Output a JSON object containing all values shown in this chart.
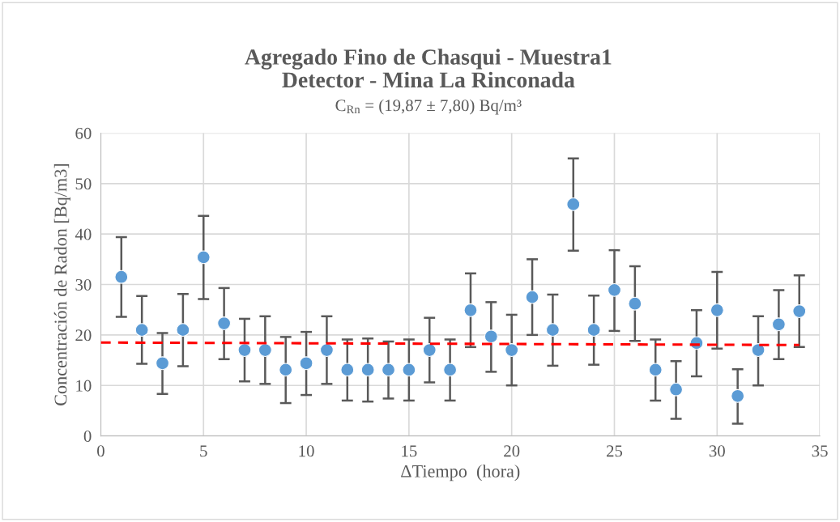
{
  "chart_data": {
    "type": "scatter",
    "title": "Agregado Fino de Chasqui - Muestra1\nDetector - Mina La Rinconada",
    "subtitle": "C$_{Rn}$ = (19,87 ± 7,80) Bq/m³",
    "xlabel": "ΔTiempo  (hora)",
    "ylabel": "Concentración de Radon [Bq/m3]",
    "xlim": [
      0,
      35
    ],
    "xticks": [
      0,
      5,
      10,
      15,
      20,
      25,
      30,
      35
    ],
    "ylim": [
      0,
      60
    ],
    "yticks": [
      0,
      10,
      20,
      30,
      40,
      50,
      60
    ],
    "grid": true,
    "marker": "circle",
    "series": [
      {
        "color": "#5b9bd5",
        "x": [
          1,
          2,
          3,
          4,
          5,
          6,
          7,
          8,
          9,
          10,
          11,
          12,
          13,
          14,
          15,
          16,
          17,
          18,
          19,
          20,
          21,
          22,
          23,
          24,
          25,
          26,
          27,
          28,
          29,
          30,
          31,
          32,
          33,
          34
        ],
        "values": [
          31.5,
          21,
          14.4,
          21,
          35.4,
          22.3,
          17,
          17,
          13.1,
          14.4,
          17,
          13.1,
          13.1,
          13.1,
          13.1,
          17,
          13.1,
          24.9,
          19.7,
          17,
          27.5,
          21,
          45.9,
          21,
          28.9,
          26.2,
          13.1,
          9.2,
          18.4,
          24.9,
          7.9,
          17,
          22.1,
          24.7
        ],
        "errors": [
          [
            23.6,
            39.4
          ],
          [
            14.3,
            27.7
          ],
          [
            8.3,
            20.4
          ],
          [
            13.8,
            28.1
          ],
          [
            27.1,
            43.6
          ],
          [
            15.2,
            29.3
          ],
          [
            10.8,
            23.2
          ],
          [
            10.3,
            23.7
          ],
          [
            6.5,
            19.6
          ],
          [
            8.1,
            20.6
          ],
          [
            10.3,
            23.7
          ],
          [
            7.0,
            19.1
          ],
          [
            6.8,
            19.3
          ],
          [
            7.4,
            18.7
          ],
          [
            7.0,
            19.1
          ],
          [
            10.6,
            23.4
          ],
          [
            7.0,
            19.1
          ],
          [
            17.6,
            32.2
          ],
          [
            12.7,
            26.5
          ],
          [
            10.0,
            24.0
          ],
          [
            20.0,
            35.0
          ],
          [
            13.9,
            28.0
          ],
          [
            36.7,
            55.0
          ],
          [
            14.1,
            27.8
          ],
          [
            20.8,
            36.8
          ],
          [
            18.8,
            33.6
          ],
          [
            7.0,
            19.1
          ],
          [
            3.4,
            14.8
          ],
          [
            11.8,
            24.9
          ],
          [
            17.3,
            32.5
          ],
          [
            2.4,
            13.2
          ],
          [
            10.0,
            23.7
          ],
          [
            15.2,
            28.9
          ],
          [
            17.6,
            31.8
          ]
        ]
      },
      {
        "type": "line",
        "color": "#ff0000",
        "line_style": "dashed",
        "marker": "none",
        "x": [
          0,
          34
        ],
        "values": [
          18.5,
          18.0
        ]
      }
    ]
  }
}
